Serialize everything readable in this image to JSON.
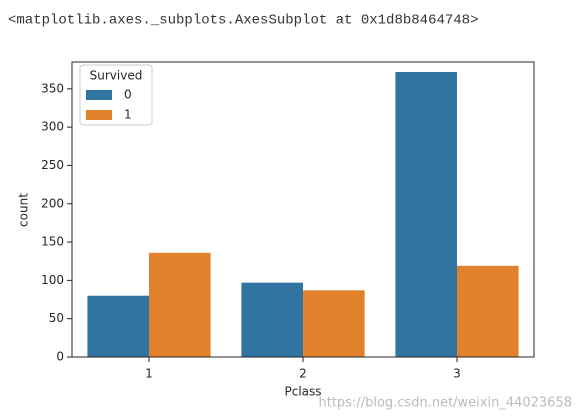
{
  "output": "<matplotlib.axes._subplots.AxesSubplot at 0x1d8b8464748>",
  "watermark": "https://blog.csdn.net/weixin_44023658",
  "chart_data": {
    "type": "bar",
    "x_label": "Pclass",
    "y_label": "count",
    "categories": [
      "1",
      "2",
      "3"
    ],
    "legend_title": "Survived",
    "legend": "upper left",
    "series": [
      {
        "name": "0",
        "color": "#3274a1",
        "values": [
          80,
          97,
          372
        ]
      },
      {
        "name": "1",
        "color": "#e1812c",
        "values": [
          136,
          87,
          119
        ]
      }
    ],
    "ylim": [
      0,
      385
    ],
    "yticks": [
      0,
      50,
      100,
      150,
      200,
      250,
      300,
      350
    ]
  }
}
